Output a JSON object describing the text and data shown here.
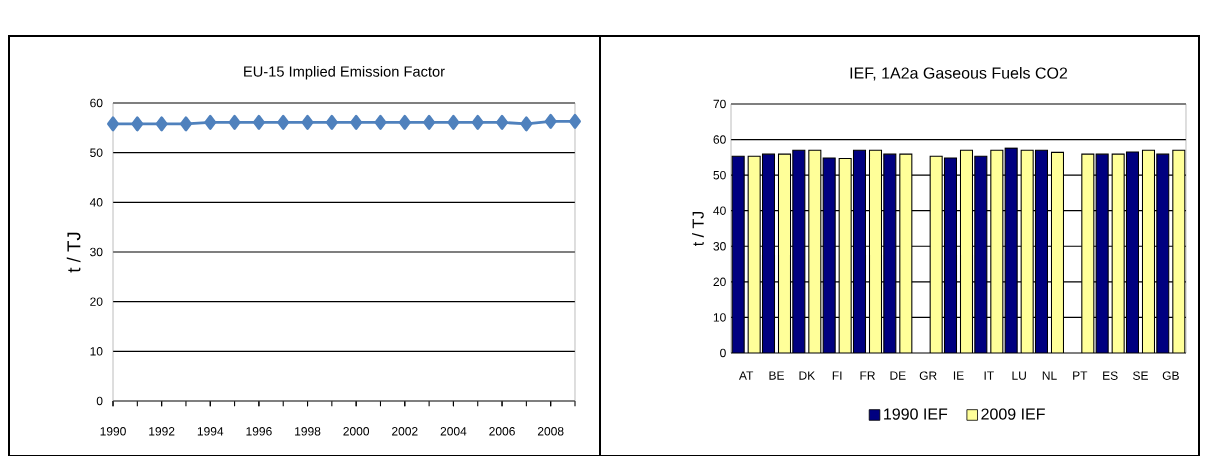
{
  "chart_data": [
    {
      "type": "line",
      "title": "EU-15 Implied Emission Factor",
      "ylabel": "t / TJ",
      "x": [
        1990,
        1991,
        1992,
        1993,
        1994,
        1995,
        1996,
        1997,
        1998,
        1999,
        2000,
        2001,
        2002,
        2003,
        2004,
        2005,
        2006,
        2007,
        2008,
        2009
      ],
      "series": [
        {
          "color": "#4f81bd",
          "values": [
            55.8,
            55.8,
            55.8,
            55.8,
            56.1,
            56.1,
            56.1,
            56.1,
            56.1,
            56.1,
            56.1,
            56.1,
            56.1,
            56.1,
            56.1,
            56.1,
            56.1,
            55.8,
            56.3,
            56.3
          ]
        }
      ],
      "xlim": [
        1990,
        2009
      ],
      "xticks": [
        1990,
        1992,
        1994,
        1996,
        1998,
        2000,
        2002,
        2004,
        2006,
        2008
      ],
      "ylim": [
        0,
        60
      ],
      "yticks": [
        0,
        10,
        20,
        30,
        40,
        50,
        60
      ],
      "grid": "y",
      "marker": "diamond",
      "legend": false
    },
    {
      "type": "bar",
      "title": "IEF, 1A2a Gaseous Fuels CO2",
      "ylabel": "t / TJ",
      "categories": [
        "AT",
        "BE",
        "DK",
        "FI",
        "FR",
        "DE",
        "GR",
        "IE",
        "IT",
        "LU",
        "NL",
        "PT",
        "ES",
        "SE",
        "GB"
      ],
      "series": [
        {
          "name": "1990 IEF",
          "color": "#000080",
          "values": [
            55.3,
            55.9,
            57,
            54.8,
            57,
            55.9,
            null,
            54.8,
            55.3,
            57.6,
            57,
            null,
            55.9,
            56.5,
            55.9
          ]
        },
        {
          "name": "2009 IEF",
          "color": "#ffff99",
          "values": [
            55.3,
            55.9,
            57,
            54.7,
            57,
            55.9,
            55.3,
            57,
            57,
            57,
            56.4,
            55.9,
            55.9,
            57,
            57
          ]
        }
      ],
      "ylim": [
        0,
        70
      ],
      "yticks": [
        0,
        10,
        20,
        30,
        40,
        50,
        60,
        70
      ],
      "grid": "y",
      "legend": "bottom"
    }
  ]
}
